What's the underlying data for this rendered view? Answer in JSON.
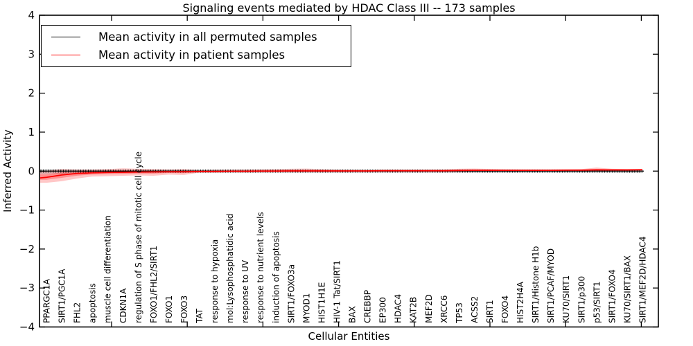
{
  "figure": {
    "title": "Signaling events mediated by HDAC Class III -- 173 samples",
    "sample_count": "173"
  },
  "legend": {
    "items": [
      {
        "label": "Mean activity in all permuted samples",
        "color": "#000000"
      },
      {
        "label": "Mean activity in patient samples",
        "color": "#ff0000"
      }
    ],
    "position": "upper left"
  },
  "chart_data": {
    "type": "line",
    "title": "Signaling events mediated by HDAC Class III -- 173 samples",
    "xlabel": "Cellular Entities",
    "ylabel": "Inferred Activity",
    "ylim": [
      -4,
      4
    ],
    "ytick_labels": [
      "4",
      "3",
      "2",
      "1",
      "0",
      "−1",
      "−2",
      "−3",
      "−4"
    ],
    "grid": false,
    "legend_position": "upper left",
    "categories": [
      "PPARGC1A",
      "SIRT1/PGC1A",
      "FHL2",
      "apoptosis",
      "muscle cell differentiation",
      "CDKN1A",
      "regulation of S phase of mitotic cell cycle",
      "FOXO1/FHL2/SIRT1",
      "FOXO1",
      "FOXO3",
      "TAT",
      "response to hypoxia",
      "mol:Lysophosphatidic acid",
      "response to UV",
      "response to nutrient levels",
      "induction of apoptosis",
      "SIRT1/FOXO3a",
      "MYOD1",
      "HIST1H1E",
      "HIV-1 Tat/SIRT1",
      "BAX",
      "CREBBP",
      "EP300",
      "HDAC4",
      "KAT2B",
      "MEF2D",
      "XRCC6",
      "TP53",
      "ACSS2",
      "SIRT1",
      "FOXO4",
      "HIST2H4A",
      "SIRT1/Histone H1b",
      "SIRT1/PCAF/MYOD",
      "KU70/SIRT1",
      "SIRT1/p300",
      "p53/SIRT1",
      "SIRT1/FOXO4",
      "KU70/SIRT1/BAX",
      "SIRT1/MEF2D/HDAC4"
    ],
    "series": [
      {
        "name": "Mean activity in all permuted samples",
        "color": "#000000",
        "band_color": "#aaaaaa",
        "values": [
          0,
          0,
          0,
          0,
          0,
          0,
          0,
          0,
          0,
          0,
          0,
          0,
          0,
          0,
          0,
          0,
          0,
          0,
          0,
          0,
          0,
          0,
          0,
          0,
          0,
          0,
          0,
          0,
          0,
          0,
          0,
          0,
          0,
          0,
          0,
          0,
          0,
          0,
          0,
          0
        ],
        "band_upper": [
          0.05,
          0.05,
          0.045,
          0.045,
          0.045,
          0.045,
          0.045,
          0.045,
          0.045,
          0.045,
          0.045,
          0.045,
          0.045,
          0.045,
          0.045,
          0.045,
          0.045,
          0.045,
          0.045,
          0.045,
          0.045,
          0.045,
          0.045,
          0.045,
          0.045,
          0.045,
          0.045,
          0.045,
          0.045,
          0.045,
          0.045,
          0.045,
          0.045,
          0.045,
          0.045,
          0.045,
          0.045,
          0.045,
          0.045,
          0.045
        ],
        "band_lower": [
          -0.08,
          -0.07,
          -0.06,
          -0.055,
          -0.05,
          -0.05,
          -0.05,
          -0.05,
          -0.045,
          -0.045,
          -0.045,
          -0.045,
          -0.045,
          -0.045,
          -0.045,
          -0.045,
          -0.045,
          -0.045,
          -0.045,
          -0.045,
          -0.045,
          -0.045,
          -0.045,
          -0.045,
          -0.045,
          -0.045,
          -0.045,
          -0.045,
          -0.045,
          -0.045,
          -0.045,
          -0.045,
          -0.045,
          -0.045,
          -0.045,
          -0.045,
          -0.045,
          -0.045,
          -0.05,
          -0.05
        ]
      },
      {
        "name": "Mean activity in patient samples",
        "color": "#ff0000",
        "band_color": "#ff0000",
        "values": [
          -0.16,
          -0.1,
          -0.06,
          -0.045,
          -0.035,
          -0.03,
          -0.025,
          -0.02,
          -0.015,
          -0.015,
          -0.01,
          -0.01,
          -0.005,
          -0.005,
          0,
          0,
          0.005,
          0.005,
          0.005,
          0.005,
          0.005,
          0.005,
          0.01,
          0.01,
          0.01,
          0.01,
          0.01,
          0.015,
          0.02,
          0.02,
          0.02,
          0.02,
          0.02,
          0.02,
          0.025,
          0.025,
          0.03,
          0.03,
          0.03,
          0.035
        ],
        "band_upper": [
          0.01,
          0.05,
          0.04,
          0.04,
          0.05,
          0.07,
          0.06,
          0.05,
          0.04,
          0.05,
          0.02,
          0.03,
          0.035,
          0.04,
          0.045,
          0.05,
          0.06,
          0.065,
          0.05,
          0.04,
          0.035,
          0.03,
          0.03,
          0.03,
          0.03,
          0.035,
          0.04,
          0.06,
          0.065,
          0.055,
          0.045,
          0.04,
          0.04,
          0.04,
          0.045,
          0.05,
          0.09,
          0.06,
          0.05,
          0.055
        ],
        "band_lower": [
          -0.3,
          -0.26,
          -0.19,
          -0.14,
          -0.13,
          -0.12,
          -0.11,
          -0.12,
          -0.09,
          -0.1,
          -0.04,
          -0.04,
          -0.03,
          -0.035,
          -0.03,
          -0.03,
          -0.03,
          -0.03,
          -0.03,
          -0.03,
          -0.025,
          -0.025,
          -0.02,
          -0.02,
          -0.02,
          -0.02,
          -0.02,
          -0.015,
          -0.015,
          -0.015,
          -0.015,
          -0.015,
          -0.01,
          -0.01,
          -0.01,
          -0.005,
          -0.01,
          -0.005,
          -0.005,
          0
        ]
      }
    ]
  }
}
